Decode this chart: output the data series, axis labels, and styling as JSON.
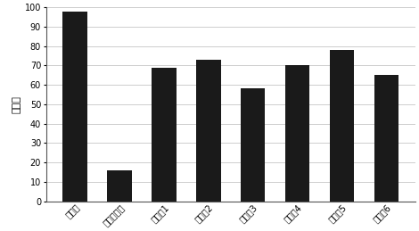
{
  "categories": [
    "试验组",
    "载体对照组",
    "对照组1",
    "对照组2",
    "对照组3",
    "对照组4",
    "对照组5",
    "对照组6"
  ],
  "values": [
    98,
    16,
    69,
    73,
    58,
    70,
    78,
    65
  ],
  "bar_color": "#1a1a1a",
  "ylabel": "百分比",
  "ylim": [
    0,
    100
  ],
  "yticks": [
    0,
    10,
    20,
    30,
    40,
    50,
    60,
    70,
    80,
    90,
    100
  ],
  "background_color": "#ffffff",
  "bar_width": 0.55,
  "tick_fontsize": 7,
  "ylabel_fontsize": 8,
  "grid_color": "#bbbbbb",
  "grid_linewidth": 0.5,
  "spine_color": "#555555"
}
